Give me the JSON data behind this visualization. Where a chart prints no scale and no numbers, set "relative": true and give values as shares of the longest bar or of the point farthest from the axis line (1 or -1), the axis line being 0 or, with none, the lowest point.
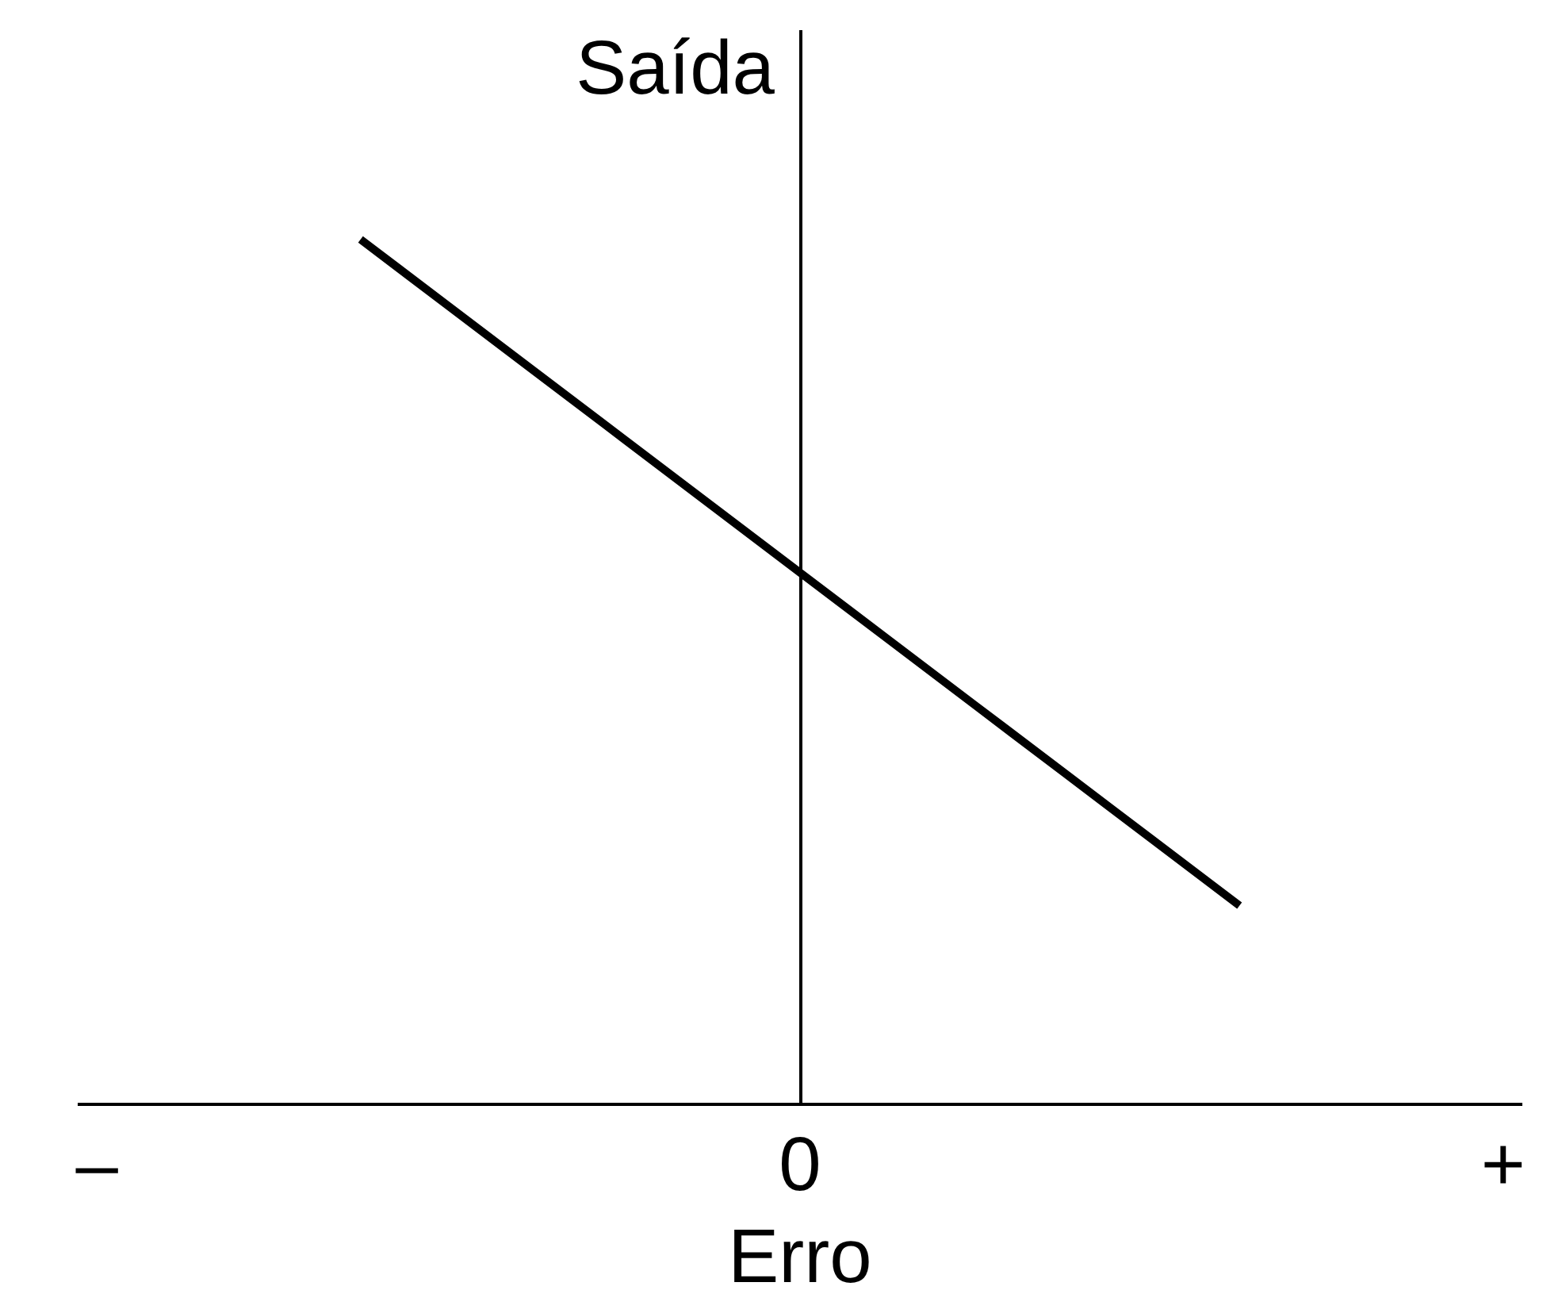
{
  "chart_data": {
    "type": "line",
    "xlabel": "Erro",
    "ylabel": "Saída",
    "categories": [
      "–",
      null,
      null,
      null,
      null,
      null,
      null,
      null,
      "0",
      null,
      null,
      null,
      null,
      null,
      null,
      null,
      "+"
    ],
    "values": [
      null,
      null,
      null,
      1,
      0.923,
      0.846,
      0.769,
      0.692,
      0.615,
      0.538,
      0.461,
      0.384,
      0.307,
      0.23,
      null,
      null,
      null
    ],
    "color": "#000000",
    "relative": true,
    "marker": "none"
  }
}
